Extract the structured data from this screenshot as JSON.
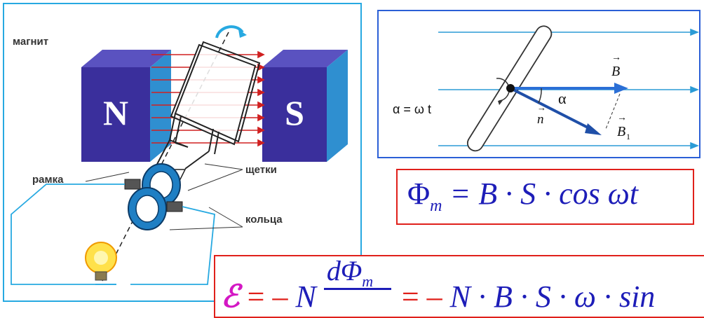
{
  "generator": {
    "magnet_label": "магнит",
    "pole_n": "N",
    "pole_s": "S",
    "frame_label": "рамка",
    "brushes_label": "щетки",
    "rings_label": "кольца"
  },
  "field_diagram": {
    "equation": "α = ω t",
    "vector_b": "B",
    "vector_n": "n",
    "vector_b1": "B",
    "vector_b1_sub": "1",
    "angle_label": "α"
  },
  "flux_formula": {
    "lhs": "Φ",
    "lhs_sub": "m",
    "rhs": "= B · S · cos ωt"
  },
  "emf_formula": {
    "symbol": "ℰ",
    "eq1": "= –",
    "n1": "N",
    "numerator": "dΦ",
    "numerator_sub": "m",
    "eq2": "= –",
    "rhs": "N · B · S · ω · sin"
  },
  "colors": {
    "pole_block": "#3a2f9c",
    "pole_top": "#5a52c0",
    "pole_side": "#2f8fd0",
    "field_line": "#2b9bd6",
    "field_arrow_red": "#d02020",
    "formula_blue": "#1d1db8",
    "formula_red": "#e0201b",
    "emf_magenta": "#d418c4"
  }
}
